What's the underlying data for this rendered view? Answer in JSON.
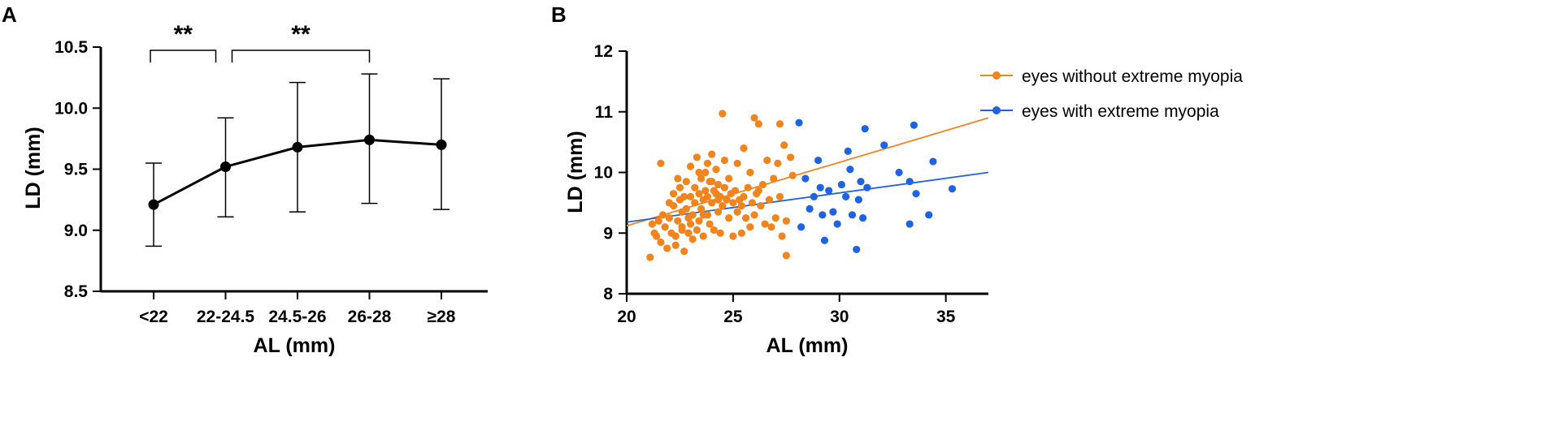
{
  "chart_data": [
    {
      "panel": "A",
      "type": "line",
      "xlabel": "AL (mm)",
      "ylabel": "LD (mm)",
      "categories": [
        "<22",
        "22-24.5",
        "24.5-26",
        "26-28",
        "≥28"
      ],
      "values": [
        9.21,
        9.52,
        9.68,
        9.74,
        9.7
      ],
      "error_low": [
        8.87,
        9.11,
        9.15,
        9.22,
        9.17
      ],
      "error_high": [
        9.55,
        9.92,
        10.21,
        10.28,
        10.24
      ],
      "ylim": [
        8.5,
        10.5
      ],
      "yticks": [
        "8.5",
        "9.0",
        "9.5",
        "10.0",
        "10.5"
      ],
      "significance": [
        {
          "from": 0,
          "to": 1,
          "label": "**"
        },
        {
          "from": 1,
          "to": 3,
          "label": "**"
        }
      ]
    },
    {
      "panel": "B",
      "type": "scatter",
      "xlabel": "AL (mm)",
      "ylabel": "LD (mm)",
      "xlim": [
        20,
        37
      ],
      "ylim": [
        8,
        12
      ],
      "xticks": [
        "20",
        "25",
        "30",
        "35"
      ],
      "yticks": [
        "8",
        "9",
        "10",
        "11",
        "12"
      ],
      "series": [
        {
          "name": "eyes without extreme myopia",
          "color": "#F0851E",
          "fit": {
            "x": [
              20,
              37
            ],
            "y": [
              9.12,
              10.9
            ]
          },
          "points": [
            [
              21.1,
              8.6
            ],
            [
              21.2,
              9.15
            ],
            [
              21.3,
              9.0
            ],
            [
              21.4,
              8.95
            ],
            [
              21.5,
              9.2
            ],
            [
              21.6,
              10.15
            ],
            [
              21.6,
              8.85
            ],
            [
              21.7,
              9.3
            ],
            [
              21.8,
              9.1
            ],
            [
              21.9,
              8.75
            ],
            [
              22.0,
              9.5
            ],
            [
              22.0,
              9.25
            ],
            [
              22.1,
              9.0
            ],
            [
              22.2,
              9.45
            ],
            [
              22.2,
              9.65
            ],
            [
              22.3,
              8.95
            ],
            [
              22.3,
              8.8
            ],
            [
              22.4,
              9.2
            ],
            [
              22.5,
              9.55
            ],
            [
              22.5,
              9.75
            ],
            [
              22.6,
              9.1
            ],
            [
              22.6,
              9.35
            ],
            [
              22.7,
              8.7
            ],
            [
              22.7,
              9.6
            ],
            [
              22.8,
              9.4
            ],
            [
              22.8,
              9.85
            ],
            [
              22.9,
              9.0
            ],
            [
              22.9,
              9.25
            ],
            [
              23.0,
              9.6
            ],
            [
              23.0,
              10.1
            ],
            [
              23.1,
              9.3
            ],
            [
              23.1,
              8.9
            ],
            [
              23.2,
              9.5
            ],
            [
              23.2,
              9.75
            ],
            [
              23.3,
              9.05
            ],
            [
              23.3,
              10.25
            ],
            [
              23.4,
              9.65
            ],
            [
              23.4,
              9.2
            ],
            [
              23.5,
              9.4
            ],
            [
              23.5,
              9.9
            ],
            [
              23.6,
              9.55
            ],
            [
              23.6,
              8.95
            ],
            [
              23.7,
              9.7
            ],
            [
              23.7,
              10.0
            ],
            [
              23.8,
              9.3
            ],
            [
              23.8,
              9.6
            ],
            [
              23.9,
              9.85
            ],
            [
              23.9,
              9.15
            ],
            [
              24.0,
              10.3
            ],
            [
              24.0,
              9.5
            ],
            [
              24.1,
              9.7
            ],
            [
              24.1,
              9.05
            ],
            [
              24.2,
              9.65
            ],
            [
              24.2,
              10.05
            ],
            [
              24.3,
              9.35
            ],
            [
              24.3,
              9.8
            ],
            [
              24.4,
              9.6
            ],
            [
              24.4,
              9.0
            ],
            [
              24.5,
              10.97
            ],
            [
              24.5,
              9.45
            ],
            [
              24.6,
              9.75
            ],
            [
              24.6,
              10.2
            ],
            [
              24.7,
              9.55
            ],
            [
              24.8,
              9.25
            ],
            [
              24.8,
              9.9
            ],
            [
              24.9,
              9.65
            ],
            [
              25.0,
              8.95
            ],
            [
              25.0,
              9.5
            ],
            [
              25.1,
              9.7
            ],
            [
              25.2,
              9.35
            ],
            [
              25.2,
              10.15
            ],
            [
              25.3,
              9.55
            ],
            [
              25.4,
              9.0
            ],
            [
              25.5,
              9.6
            ],
            [
              25.5,
              10.4
            ],
            [
              25.6,
              9.25
            ],
            [
              25.7,
              9.75
            ],
            [
              25.8,
              9.1
            ],
            [
              25.8,
              10.0
            ],
            [
              25.9,
              9.5
            ],
            [
              26.0,
              10.9
            ],
            [
              26.0,
              9.3
            ],
            [
              26.1,
              9.65
            ],
            [
              26.2,
              10.8
            ],
            [
              26.3,
              9.45
            ],
            [
              26.4,
              9.8
            ],
            [
              26.5,
              9.15
            ],
            [
              26.6,
              10.2
            ],
            [
              26.7,
              9.55
            ],
            [
              26.8,
              9.1
            ],
            [
              26.9,
              9.9
            ],
            [
              27.0,
              9.25
            ],
            [
              27.1,
              10.15
            ],
            [
              27.2,
              9.6
            ],
            [
              27.2,
              10.8
            ],
            [
              27.3,
              8.95
            ],
            [
              27.4,
              10.45
            ],
            [
              27.5,
              9.2
            ],
            [
              27.5,
              8.63
            ],
            [
              27.7,
              10.25
            ],
            [
              27.8,
              9.95
            ],
            [
              22.6,
              9.05
            ],
            [
              23.0,
              9.15
            ],
            [
              23.6,
              9.3
            ],
            [
              24.0,
              9.85
            ],
            [
              24.3,
              9.55
            ],
            [
              25.4,
              9.45
            ],
            [
              26.2,
              9.7
            ],
            [
              23.4,
              10.0
            ],
            [
              22.4,
              9.9
            ],
            [
              23.8,
              10.15
            ]
          ]
        },
        {
          "name": "eyes with extreme myopia",
          "color": "#1F63E0",
          "fit": {
            "x": [
              20,
              37
            ],
            "y": [
              9.18,
              10.0
            ]
          },
          "points": [
            [
              28.1,
              10.82
            ],
            [
              28.2,
              9.1
            ],
            [
              28.4,
              9.9
            ],
            [
              28.6,
              9.4
            ],
            [
              28.8,
              9.6
            ],
            [
              29.0,
              10.2
            ],
            [
              29.1,
              9.75
            ],
            [
              29.2,
              9.3
            ],
            [
              29.3,
              8.88
            ],
            [
              29.5,
              9.7
            ],
            [
              29.7,
              9.35
            ],
            [
              29.9,
              9.15
            ],
            [
              30.1,
              9.8
            ],
            [
              30.3,
              9.6
            ],
            [
              30.4,
              10.35
            ],
            [
              30.5,
              10.05
            ],
            [
              30.6,
              9.3
            ],
            [
              30.8,
              8.73
            ],
            [
              30.9,
              9.55
            ],
            [
              31.0,
              9.85
            ],
            [
              31.1,
              9.25
            ],
            [
              31.2,
              10.72
            ],
            [
              31.3,
              9.75
            ],
            [
              32.1,
              10.45
            ],
            [
              32.8,
              10.0
            ],
            [
              33.3,
              9.15
            ],
            [
              33.3,
              9.85
            ],
            [
              33.5,
              10.78
            ],
            [
              33.6,
              9.65
            ],
            [
              34.2,
              9.3
            ],
            [
              34.4,
              10.18
            ],
            [
              35.3,
              9.73
            ]
          ]
        }
      ]
    }
  ]
}
